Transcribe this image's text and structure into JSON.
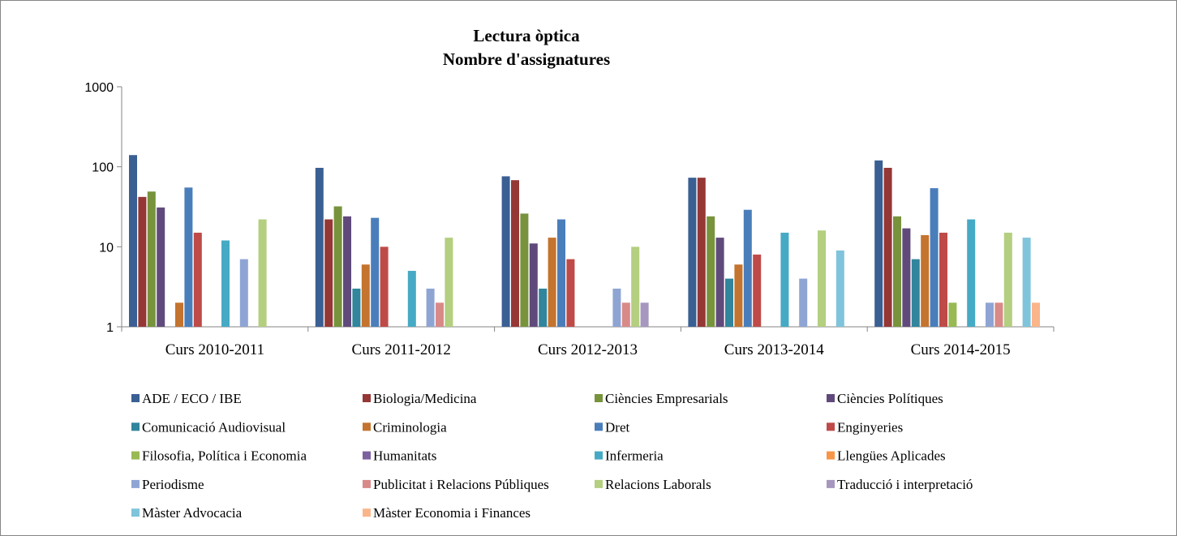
{
  "chart_data": {
    "type": "bar",
    "title": "Lectura òptica",
    "subtitle": "Nombre d'assignatures",
    "yscale": "log",
    "ylim": [
      1,
      1000
    ],
    "yticks": [
      "1",
      "10",
      "100",
      "1000"
    ],
    "yticks_values": [
      1,
      10,
      100,
      1000
    ],
    "grid": false,
    "legend_position": "bottom",
    "categories": [
      "Curs 2010-2011",
      "Curs 2011-2012",
      "Curs 2012-2013",
      "Curs 2013-2014",
      "Curs 2014-2015"
    ],
    "series": [
      {
        "name": "ADE / ECO / IBE",
        "color": "#3A5F93",
        "values": [
          140,
          97,
          76,
          73,
          120
        ]
      },
      {
        "name": "Biologia/Medicina",
        "color": "#953735",
        "values": [
          42,
          22,
          68,
          73,
          97
        ]
      },
      {
        "name": "Ciències Empresarials",
        "color": "#77933C",
        "values": [
          49,
          32,
          26,
          24,
          24
        ]
      },
      {
        "name": "Ciències Polítiques",
        "color": "#604A7B",
        "values": [
          31,
          24,
          11,
          13,
          17
        ]
      },
      {
        "name": "Comunicació Audiovisual",
        "color": "#31859C",
        "values": [
          null,
          3,
          3,
          4,
          7
        ]
      },
      {
        "name": "Criminologia",
        "color": "#C4742F",
        "values": [
          2,
          6,
          13,
          6,
          14
        ]
      },
      {
        "name": "Dret",
        "color": "#4A7EBB",
        "values": [
          55,
          23,
          22,
          29,
          54
        ]
      },
      {
        "name": "Enginyeries",
        "color": "#BE4B48",
        "values": [
          15,
          10,
          7,
          8,
          15
        ]
      },
      {
        "name": "Filosofia, Política i Economia",
        "color": "#98B954",
        "values": [
          null,
          null,
          null,
          null,
          2
        ]
      },
      {
        "name": "Humanitats",
        "color": "#7D60A0",
        "values": [
          null,
          null,
          null,
          null,
          null
        ]
      },
      {
        "name": "Infermeria",
        "color": "#46AAC5",
        "values": [
          12,
          5,
          null,
          15,
          22
        ]
      },
      {
        "name": "Llengües Aplicades",
        "color": "#F79646",
        "values": [
          null,
          null,
          null,
          null,
          null
        ]
      },
      {
        "name": "Periodisme",
        "color": "#8EA5D4",
        "values": [
          7,
          3,
          3,
          4,
          2
        ]
      },
      {
        "name": "Publicitat i Relacions Públiques",
        "color": "#D88A88",
        "values": [
          null,
          2,
          2,
          null,
          2
        ]
      },
      {
        "name": "Relacions Laborals",
        "color": "#B3CF7F",
        "values": [
          22,
          13,
          10,
          16,
          15
        ]
      },
      {
        "name": "Traducció i interpretació",
        "color": "#A597BE",
        "values": [
          null,
          null,
          2,
          null,
          null
        ]
      },
      {
        "name": "Màster Advocacia",
        "color": "#7FC4DB",
        "values": [
          null,
          null,
          null,
          9,
          13
        ]
      },
      {
        "name": "Màster Economia i Finances",
        "color": "#FAB58A",
        "values": [
          null,
          null,
          null,
          null,
          2
        ]
      }
    ]
  }
}
